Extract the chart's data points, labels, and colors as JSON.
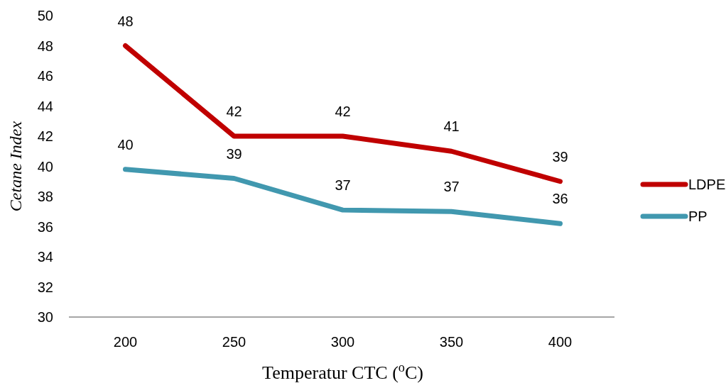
{
  "chart_data": {
    "type": "line",
    "xlabel": "Temperatur CTC ($^{o}$C)",
    "ylabel": "Cetane Index",
    "categories": [
      "200",
      "250",
      "300",
      "350",
      "400"
    ],
    "series": [
      {
        "name": "LDPE",
        "color": "#c00000",
        "values": [
          48,
          42,
          42,
          41,
          39
        ],
        "value_labels": [
          "48",
          "42",
          "42",
          "41",
          "39"
        ]
      },
      {
        "name": "PP",
        "color": "#4198af",
        "values": [
          39.8,
          39.2,
          37.1,
          37.0,
          36.2
        ],
        "value_labels": [
          "40",
          "39",
          "37",
          "37",
          "36"
        ]
      }
    ],
    "ylim": [
      30,
      50
    ],
    "yticks": [
      30,
      32,
      34,
      36,
      38,
      40,
      42,
      44,
      46,
      48,
      50
    ],
    "legend": "right",
    "grid": false,
    "line_style": "solid"
  }
}
